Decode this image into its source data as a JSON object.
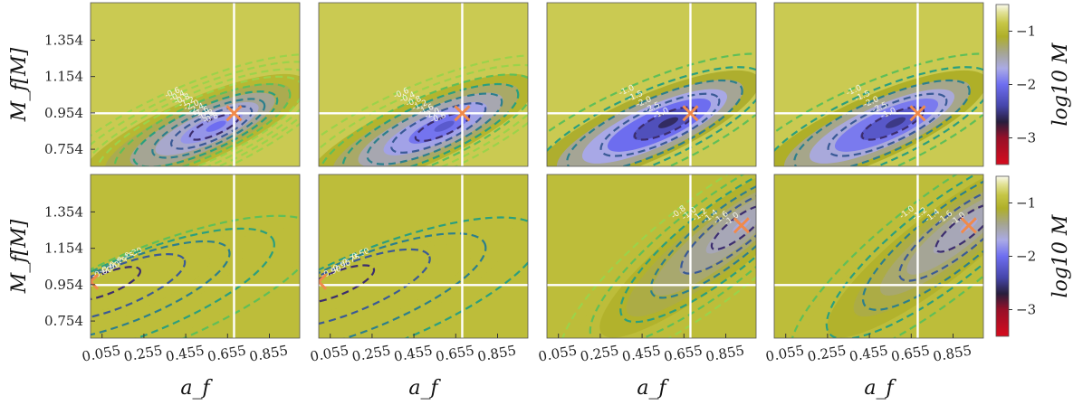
{
  "chart_data": {
    "type": "heatmap",
    "layout": "2 rows x 4 columns of contour maps, one colorbar per row",
    "xlabel": "a_f",
    "ylabel": "M_f[M]",
    "colorbar_label": "log10 M",
    "xticks": [
      "0.055",
      "0.255",
      "0.455",
      "0.655",
      "0.855"
    ],
    "yticks": [
      "0.754",
      "0.954",
      "1.154",
      "1.354"
    ],
    "colorbar_ticks": [
      "−1",
      "−2",
      "−3"
    ],
    "xlim": [
      0.0,
      1.0
    ],
    "ylim": [
      0.66,
      1.56
    ],
    "clim": [
      -3.5,
      -0.5
    ],
    "reference_lines": {
      "a_f": 0.686,
      "M_f": 0.952
    },
    "panels": [
      {
        "row": 0,
        "col": 0,
        "marker": [
          0.686,
          0.952
        ],
        "peak": [
          0.6,
          0.88
        ],
        "min_level": -2.0,
        "contour_labels": [
          "-0.6",
          "-0.4",
          "-0.8",
          "-1.2",
          "-2.0",
          "-2.4",
          "-1.6",
          "-0.8",
          "-0.8"
        ]
      },
      {
        "row": 0,
        "col": 1,
        "marker": [
          0.686,
          0.952
        ],
        "peak": [
          0.6,
          0.88
        ],
        "min_level": -2.2,
        "contour_labels": [
          "-0.6",
          "-0.4",
          "-0.8",
          "-1.2",
          "-1.6",
          "-2.0",
          "-0.8"
        ]
      },
      {
        "row": 0,
        "col": 2,
        "marker": [
          0.686,
          0.952
        ],
        "peak": [
          0.58,
          0.9
        ],
        "min_level": -2.6,
        "contour_labels": [
          "-1.0",
          "-1.5",
          "-2.0",
          "-2.5",
          "-1.0"
        ]
      },
      {
        "row": 0,
        "col": 3,
        "marker": [
          0.686,
          0.952
        ],
        "peak": [
          0.58,
          0.9
        ],
        "min_level": -2.5,
        "contour_labels": [
          "-1.0",
          "-1.5",
          "-2.0",
          "-2.5",
          "-1.0"
        ]
      },
      {
        "row": 1,
        "col": 0,
        "marker": [
          0.0,
          0.97
        ],
        "peak": [
          0.05,
          0.97
        ],
        "min_level": -0.95,
        "contour_labels": [
          "-0.30",
          "-0.45",
          "-0.75",
          "-0.90",
          "-0.60"
        ]
      },
      {
        "row": 1,
        "col": 1,
        "marker": [
          0.0,
          0.97
        ],
        "peak": [
          0.05,
          0.97
        ],
        "min_level": -0.95,
        "contour_labels": [
          "-0.60",
          "-0.75",
          "-0.90",
          "-0.90"
        ]
      },
      {
        "row": 1,
        "col": 2,
        "marker": [
          0.93,
          1.28
        ],
        "peak": [
          0.93,
          1.28
        ],
        "min_level": -1.65,
        "contour_labels": [
          "-0.8",
          "-1.0",
          "-1.2",
          "-1.4",
          "-1.6",
          "-1.0"
        ]
      },
      {
        "row": 1,
        "col": 3,
        "marker": [
          0.93,
          1.28
        ],
        "peak": [
          0.93,
          1.28
        ],
        "min_level": -1.65,
        "contour_labels": [
          "-1.0",
          "-1.2",
          "-1.4",
          "-1.6",
          "-1.0"
        ]
      }
    ]
  }
}
